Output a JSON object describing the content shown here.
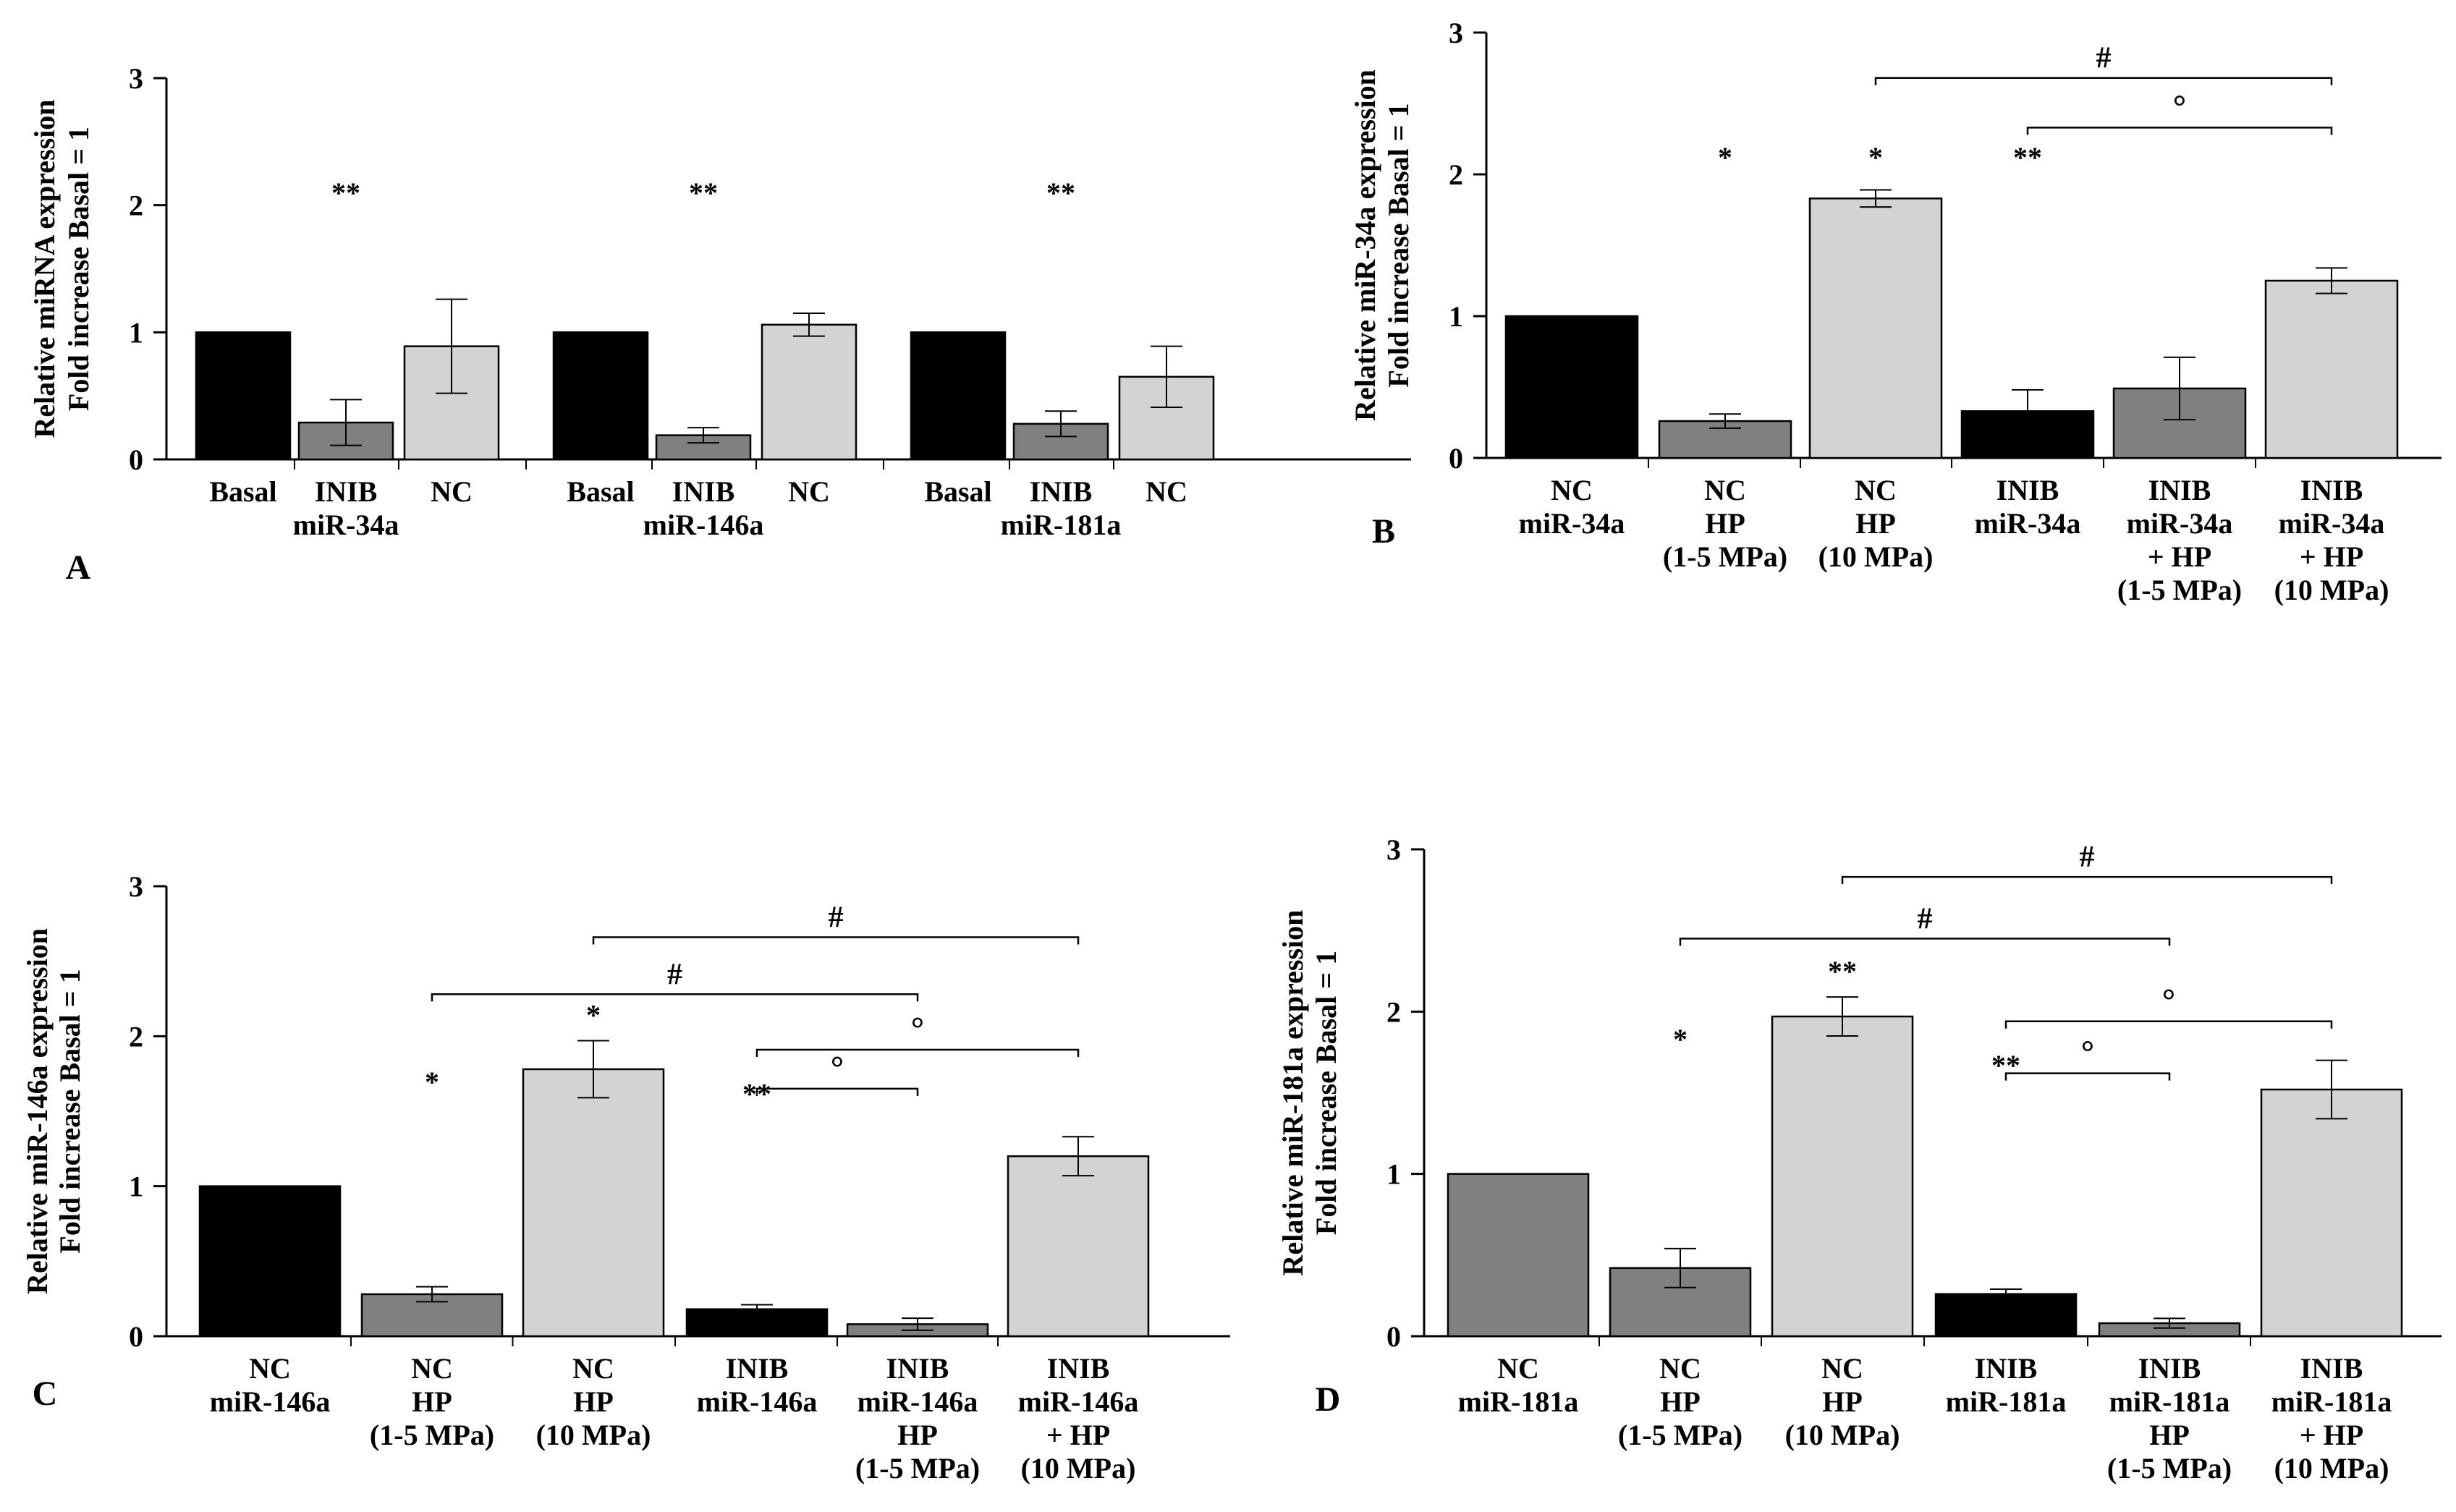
{
  "chart_data": [
    {
      "panel": "A",
      "type": "bar",
      "ylabel": [
        "Relative miRNA expression",
        "Fold increase Basal = 1"
      ],
      "ylim": [
        0,
        3
      ],
      "yticks": [
        "0",
        "1",
        "2",
        "3"
      ],
      "bars": [
        {
          "label": [
            "Basal"
          ],
          "value": 1.0,
          "error": 0,
          "color": "#000000",
          "sig": ""
        },
        {
          "label": [
            "INIB",
            "miR-34a"
          ],
          "value": 0.29,
          "error": 0.18,
          "color": "#808080",
          "sig": "**"
        },
        {
          "label": [
            "NC"
          ],
          "value": 0.89,
          "error": 0.37,
          "color": "#d3d3d3",
          "sig": ""
        },
        {
          "label": [
            "Basal"
          ],
          "value": 1.0,
          "error": 0,
          "color": "#000000",
          "sig": ""
        },
        {
          "label": [
            "INIB",
            "miR-146a"
          ],
          "value": 0.19,
          "error": 0.06,
          "color": "#808080",
          "sig": "**"
        },
        {
          "label": [
            "NC"
          ],
          "value": 1.06,
          "error": 0.09,
          "color": "#d3d3d3",
          "sig": ""
        },
        {
          "label": [
            "Basal"
          ],
          "value": 1.0,
          "error": 0,
          "color": "#000000",
          "sig": ""
        },
        {
          "label": [
            "INIB",
            "miR-181a"
          ],
          "value": 0.28,
          "error": 0.1,
          "color": "#808080",
          "sig": "**"
        },
        {
          "label": [
            "NC"
          ],
          "value": 0.65,
          "error": 0.24,
          "color": "#d3d3d3",
          "sig": ""
        }
      ],
      "brackets": []
    },
    {
      "panel": "B",
      "type": "bar",
      "ylabel": [
        "Relative miR-34a expression",
        "Fold increase Basal = 1"
      ],
      "ylim": [
        0,
        3
      ],
      "yticks": [
        "0",
        "1",
        "2",
        "3"
      ],
      "bars": [
        {
          "label": [
            "NC",
            "miR-34a"
          ],
          "value": 1.0,
          "error": 0,
          "color": "#000000",
          "sig": ""
        },
        {
          "label": [
            "NC",
            "HP",
            "(1-5 MPa)"
          ],
          "value": 0.26,
          "error": 0.05,
          "color": "#808080",
          "sig": "*"
        },
        {
          "label": [
            "NC",
            "HP",
            "(10 MPa)"
          ],
          "value": 1.83,
          "error": 0.06,
          "color": "#d3d3d3",
          "sig": "*"
        },
        {
          "label": [
            "INIB",
            "miR-34a"
          ],
          "value": 0.33,
          "error": 0.15,
          "color": "#000000",
          "sig": "**"
        },
        {
          "label": [
            "INIB",
            "miR-34a",
            "+ HP",
            "(1-5 MPa)"
          ],
          "value": 0.49,
          "error": 0.22,
          "color": "#808080",
          "sig": ""
        },
        {
          "label": [
            "INIB",
            "miR-34a",
            "+ HP",
            "(10 MPa)"
          ],
          "value": 1.25,
          "error": 0.09,
          "color": "#d3d3d3",
          "sig": ""
        }
      ],
      "brackets": [
        {
          "from": 2,
          "to": 5,
          "y": 2.68,
          "symbol": "#"
        },
        {
          "from": 3,
          "to": 5,
          "y": 2.33,
          "symbol": "°"
        }
      ]
    },
    {
      "panel": "C",
      "type": "bar",
      "ylabel": [
        "Relative miR-146a expression",
        "Fold increase Basal = 1"
      ],
      "ylim": [
        0,
        3
      ],
      "yticks": [
        "0",
        "1",
        "2",
        "3"
      ],
      "bars": [
        {
          "label": [
            "NC",
            "miR-146a"
          ],
          "value": 1.0,
          "error": 0,
          "color": "#000000",
          "sig": ""
        },
        {
          "label": [
            "NC",
            "HP",
            "(1-5 MPa)"
          ],
          "value": 0.28,
          "error": 0.05,
          "color": "#808080",
          "sig": "*"
        },
        {
          "label": [
            "NC",
            "HP",
            "(10 MPa)"
          ],
          "value": 1.78,
          "error": 0.19,
          "color": "#d3d3d3",
          "sig": "*"
        },
        {
          "label": [
            "INIB",
            "miR-146a"
          ],
          "value": 0.18,
          "error": 0.03,
          "color": "#000000",
          "sig": "**"
        },
        {
          "label": [
            "INIB",
            "miR-146a",
            "HP",
            "(1-5 MPa)"
          ],
          "value": 0.08,
          "error": 0.04,
          "color": "#808080",
          "sig": ""
        },
        {
          "label": [
            "INIB",
            "miR-146a",
            "+ HP",
            "(10 MPa)"
          ],
          "value": 1.2,
          "error": 0.13,
          "color": "#d3d3d3",
          "sig": ""
        }
      ],
      "brackets": [
        {
          "from": 2,
          "to": 5,
          "y": 2.66,
          "symbol": "#"
        },
        {
          "from": 1,
          "to": 4,
          "y": 2.28,
          "symbol": "#"
        },
        {
          "from": 3,
          "to": 5,
          "y": 1.91,
          "symbol": "°"
        },
        {
          "from": 3,
          "to": 4,
          "y": 1.65,
          "symbol": "°"
        }
      ]
    },
    {
      "panel": "D",
      "type": "bar",
      "ylabel": [
        "Relative miR-181a expression",
        "Fold increase Basal = 1"
      ],
      "ylim": [
        0,
        3
      ],
      "yticks": [
        "0",
        "1",
        "2",
        "3"
      ],
      "bars": [
        {
          "label": [
            "NC",
            "miR-181a"
          ],
          "value": 1.0,
          "error": 0,
          "color": "#808080",
          "sig": ""
        },
        {
          "label": [
            "NC",
            "HP",
            "(1-5 MPa)"
          ],
          "value": 0.42,
          "error": 0.12,
          "color": "#808080",
          "sig": "*"
        },
        {
          "label": [
            "NC",
            "HP",
            "(10 MPa)"
          ],
          "value": 1.97,
          "error": 0.12,
          "color": "#d3d3d3",
          "sig": "**"
        },
        {
          "label": [
            "INIB",
            "miR-181a"
          ],
          "value": 0.26,
          "error": 0.03,
          "color": "#000000",
          "sig": "**"
        },
        {
          "label": [
            "INIB",
            "miR-181a",
            "HP",
            "(1-5 MPa)"
          ],
          "value": 0.08,
          "error": 0.03,
          "color": "#808080",
          "sig": ""
        },
        {
          "label": [
            "INIB",
            "miR-181a",
            "+ HP",
            "(10 MPa)"
          ],
          "value": 1.52,
          "error": 0.18,
          "color": "#d3d3d3",
          "sig": ""
        }
      ],
      "brackets": [
        {
          "from": 2,
          "to": 5,
          "y": 2.83,
          "symbol": "#"
        },
        {
          "from": 1,
          "to": 4,
          "y": 2.45,
          "symbol": "#"
        },
        {
          "from": 3,
          "to": 5,
          "y": 1.94,
          "symbol": "°"
        },
        {
          "from": 3,
          "to": 4,
          "y": 1.62,
          "symbol": "°"
        }
      ]
    }
  ]
}
